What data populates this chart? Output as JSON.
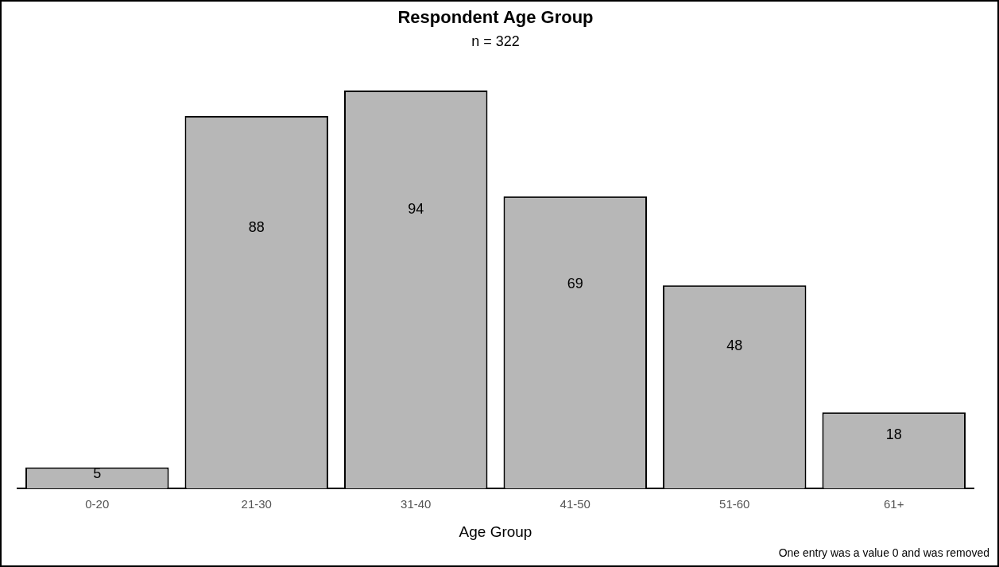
{
  "chart_data": {
    "type": "bar",
    "title": "Respondent Age Group",
    "subtitle": "n = 322",
    "xlabel": "Age Group",
    "categories": [
      "0-20",
      "21-30",
      "31-40",
      "41-50",
      "51-60",
      "61+"
    ],
    "values": [
      5,
      88,
      94,
      69,
      48,
      18
    ],
    "color": "#b7b7b7",
    "data_labels": true,
    "annotations": [
      "One entry was a value 0 and was removed"
    ]
  }
}
